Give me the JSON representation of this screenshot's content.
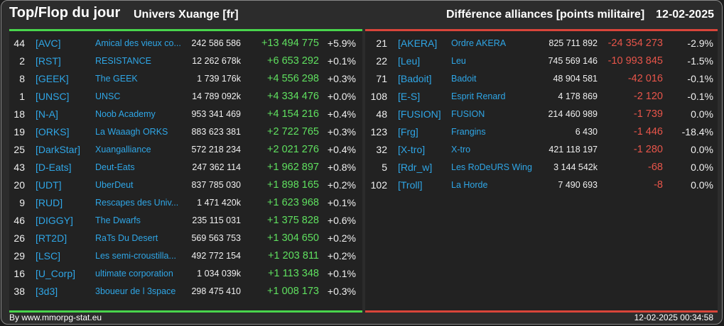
{
  "header": {
    "title": "Top/Flop du jour",
    "universe": "Univers Xuange [fr]",
    "subtitle": "Différence alliances [points militaire]",
    "date": "12-02-2025"
  },
  "top": [
    {
      "rank": "44",
      "tag": "[AVC]",
      "name": "Amical des vieux co...",
      "points": "242 586 586",
      "diff": "+13 494 775",
      "pct": "+5.9%"
    },
    {
      "rank": "2",
      "tag": "[RST]",
      "name": "RESISTANCE",
      "points": "12 262 678k",
      "diff": "+6 653 292",
      "pct": "+0.1%"
    },
    {
      "rank": "8",
      "tag": "[GEEK]",
      "name": "The GEEK",
      "points": "1 739 176k",
      "diff": "+4 556 298",
      "pct": "+0.3%"
    },
    {
      "rank": "1",
      "tag": "[UNSC]",
      "name": "UNSC",
      "points": "14 789 092k",
      "diff": "+4 334 476",
      "pct": "+0.0%"
    },
    {
      "rank": "18",
      "tag": "[N-A]",
      "name": "Noob Academy",
      "points": "953 341 469",
      "diff": "+4 154 216",
      "pct": "+0.4%"
    },
    {
      "rank": "19",
      "tag": "[ORKS]",
      "name": "La Waaagh ORKS",
      "points": "883 623 381",
      "diff": "+2 722 765",
      "pct": "+0.3%"
    },
    {
      "rank": "25",
      "tag": "[DarkStar]",
      "name": "Xuangalliance",
      "points": "572 218 234",
      "diff": "+2 021 276",
      "pct": "+0.4%"
    },
    {
      "rank": "43",
      "tag": "[D-Eats]",
      "name": "Deut-Eats",
      "points": "247 362 114",
      "diff": "+1 962 897",
      "pct": "+0.8%"
    },
    {
      "rank": "20",
      "tag": "[UDT]",
      "name": "UberDeut",
      "points": "837 785 030",
      "diff": "+1 898 165",
      "pct": "+0.2%"
    },
    {
      "rank": "9",
      "tag": "[RUD]",
      "name": "Rescapes des Univ...",
      "points": "1 471 420k",
      "diff": "+1 623 968",
      "pct": "+0.1%"
    },
    {
      "rank": "46",
      "tag": "[DIGGY]",
      "name": "The Dwarfs",
      "points": "235 115 031",
      "diff": "+1 375 828",
      "pct": "+0.6%"
    },
    {
      "rank": "26",
      "tag": "[RT2D]",
      "name": "RaTs Du Desert",
      "points": "569 563 753",
      "diff": "+1 304 650",
      "pct": "+0.2%"
    },
    {
      "rank": "29",
      "tag": "[LSC]",
      "name": "Les semi-croustilla...",
      "points": "492 772 154",
      "diff": "+1 203 811",
      "pct": "+0.2%"
    },
    {
      "rank": "16",
      "tag": "[U_Corp]",
      "name": "ultimate corporation",
      "points": "1 034 039k",
      "diff": "+1 113 348",
      "pct": "+0.1%"
    },
    {
      "rank": "38",
      "tag": "[3d3]",
      "name": "3boueur de l 3space",
      "points": "298 475 410",
      "diff": "+1 008 173",
      "pct": "+0.3%"
    }
  ],
  "flop": [
    {
      "rank": "21",
      "tag": "[AKERA]",
      "name": "Ordre AKERA",
      "points": "825 711 892",
      "diff": "-24 354 273",
      "pct": "-2.9%"
    },
    {
      "rank": "22",
      "tag": "[Leu]",
      "name": "Leu",
      "points": "745 569 146",
      "diff": "-10 993 845",
      "pct": "-1.5%"
    },
    {
      "rank": "71",
      "tag": "[Badoit]",
      "name": "Badoit",
      "points": "48 904 581",
      "diff": "-42 016",
      "pct": "-0.1%"
    },
    {
      "rank": "108",
      "tag": "[E-S]",
      "name": "Esprit Renard",
      "points": "4 178 869",
      "diff": "-2 120",
      "pct": "-0.1%"
    },
    {
      "rank": "48",
      "tag": "[FUSION]",
      "name": "FUSION",
      "points": "214 460 989",
      "diff": "-1 739",
      "pct": "0.0%"
    },
    {
      "rank": "123",
      "tag": "[Frg]",
      "name": "Frangins",
      "points": "6 430",
      "diff": "-1 446",
      "pct": "-18.4%"
    },
    {
      "rank": "32",
      "tag": "[X-tro]",
      "name": "X-tro",
      "points": "421 118 197",
      "diff": "-1 280",
      "pct": "0.0%"
    },
    {
      "rank": "5",
      "tag": "[Rdr_w]",
      "name": "Les RoDeURS Wing",
      "points": "3 144 542k",
      "diff": "-68",
      "pct": "0.0%"
    },
    {
      "rank": "102",
      "tag": "[Troll]",
      "name": "La Horde",
      "points": "7 490 693",
      "diff": "-8",
      "pct": "0.0%"
    }
  ],
  "footer": {
    "site": "By www.mmorpg-stat.eu",
    "timestamp": "12-02-2025 00:34:58"
  },
  "colors": {
    "accent_top": "#49d54c",
    "accent_flop": "#d9453a",
    "link": "#2fa6e6",
    "positive": "#5fe05f",
    "negative": "#e8554a"
  }
}
